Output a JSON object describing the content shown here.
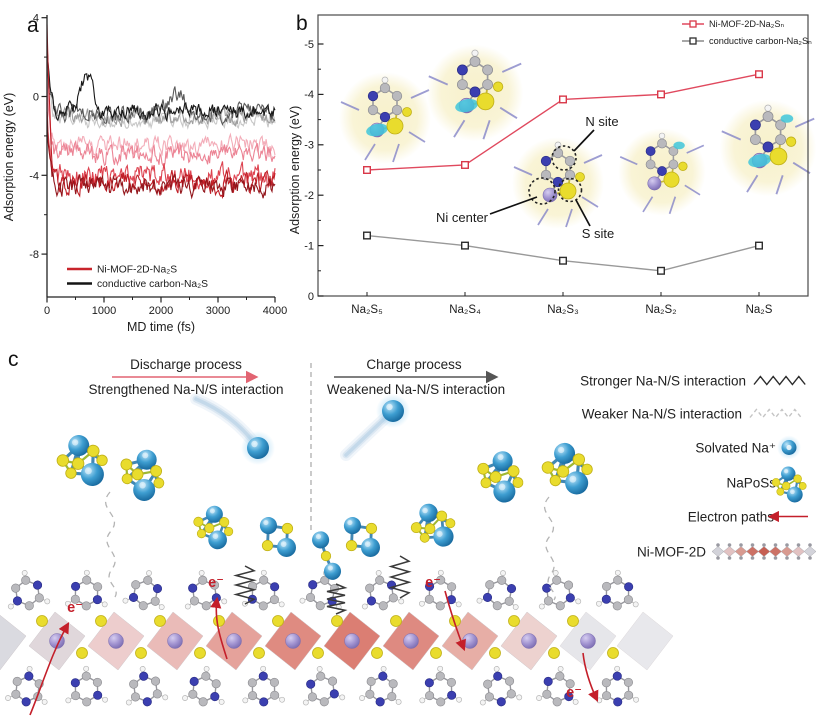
{
  "figure": {
    "panels": {
      "a": {
        "label": "a",
        "ylabel": "Adsorption energy (eV)",
        "xlabel": "MD time (fs)",
        "legend": [
          {
            "label": "Ni-MOF-2D-Na₂S",
            "color": "#c8242b"
          },
          {
            "label": "conductive  carbon-Na₂S",
            "color": "#141414"
          }
        ]
      },
      "b": {
        "label": "b",
        "ylabel": "Adsorption energy (eV)",
        "legend": [
          {
            "label": "Ni-MOF-2D-Na₂Sₙ",
            "color": "#e0495e"
          },
          {
            "label": "conductive  carbon-Na₂Sₙ",
            "color": "#8a8a8a"
          }
        ],
        "annotations": {
          "n_site": "N site",
          "ni_center": "Ni center",
          "s_site": "S site"
        }
      },
      "c": {
        "label": "c",
        "discharge_title": "Discharge process",
        "discharge_sub": "Strengthened Na-N/S interaction",
        "charge_title": "Charge process",
        "charge_sub": "Weakened Na-N/S interaction",
        "electron_label": "e⁻",
        "legend": [
          {
            "label": "Stronger Na-N/S interaction",
            "symbol": "solid-zigzag"
          },
          {
            "label": "Weaker Na-N/S interaction",
            "symbol": "dashed-zigzag"
          },
          {
            "label": "Solvated Na⁺",
            "symbol": "glow-sphere"
          },
          {
            "label": "NaPoSs",
            "symbol": "cluster"
          },
          {
            "label": "Electron paths",
            "symbol": "red-arrow"
          },
          {
            "label": "Ni-MOF-2D",
            "symbol": "mof-chain"
          }
        ]
      }
    }
  },
  "chart_data": [
    {
      "panel": "a",
      "type": "line",
      "title": "",
      "xlabel": "MD time (fs)",
      "ylabel": "Adsorption energy (eV)",
      "xlim": [
        0,
        4000
      ],
      "ylim": [
        -10,
        4
      ],
      "yticks": [
        4,
        0,
        -4,
        -8
      ],
      "xticks": [
        0,
        1000,
        2000,
        3000,
        4000
      ],
      "grid": false,
      "legend_position": "bottom-left",
      "note": "AIMD traces: values spike at t=0 then fluctuate around an equilibrium mean",
      "series": [
        {
          "name": "conductive carbon-Na₂S trace 1",
          "color": "#c7c7c7",
          "start": 3.2,
          "equilibrium_mean_eV": -1.25,
          "noise_amp_eV": 0.3
        },
        {
          "name": "conductive carbon-Na₂S trace 2",
          "color": "#9e9e9e",
          "start": 2.6,
          "equilibrium_mean_eV": -1.05,
          "noise_amp_eV": 0.32
        },
        {
          "name": "conductive carbon-Na₂S trace 3",
          "color": "#5b5b5b",
          "start": 1.8,
          "equilibrium_mean_eV": -0.82,
          "noise_amp_eV": 0.38,
          "bump": {
            "t_fs": 2300,
            "height_eV": 0.9,
            "width_fs": 200
          }
        },
        {
          "name": "conductive carbon-Na₂S trace 4",
          "color": "#171717",
          "start": 2.4,
          "equilibrium_mean_eV": -0.75,
          "noise_amp_eV": 0.34,
          "bump": {
            "t_fs": 700,
            "height_eV": 1.9,
            "width_fs": 150
          }
        },
        {
          "name": "Ni-MOF-2D-Na₂S trace 1",
          "color": "#f3adb9",
          "start": 1.2,
          "equilibrium_mean_eV": -2.5,
          "noise_amp_eV": 0.4
        },
        {
          "name": "Ni-MOF-2D-Na₂S trace 2",
          "color": "#ec8495",
          "start": 0.6,
          "equilibrium_mean_eV": -2.95,
          "noise_amp_eV": 0.44
        },
        {
          "name": "Ni-MOF-2D-Na₂S trace 3",
          "color": "#dd4350",
          "start": -0.2,
          "equilibrium_mean_eV": -4.0,
          "noise_amp_eV": 0.5
        },
        {
          "name": "Ni-MOF-2D-Na₂S trace 4",
          "color": "#c01e26",
          "start": 3.8,
          "equilibrium_mean_eV": -4.35,
          "noise_amp_eV": 0.46
        },
        {
          "name": "Ni-MOF-2D-Na₂S trace 5",
          "color": "#93151b",
          "start": -0.8,
          "equilibrium_mean_eV": -4.55,
          "noise_amp_eV": 0.42
        }
      ]
    },
    {
      "panel": "b",
      "type": "line",
      "title": "",
      "ylabel": "Adsorption energy (eV)",
      "categories": [
        "Na₂S₅",
        "Na₂S₄",
        "Na₂S₃",
        "Na₂S₂",
        "Na₂S"
      ],
      "yticks": [
        0,
        -1,
        -2,
        -3,
        -4,
        -5
      ],
      "ylim": [
        0,
        -5
      ],
      "grid": false,
      "legend_position": "top-right",
      "series": [
        {
          "name": "Ni-MOF-2D-Na₂Sₙ",
          "color": "#e0495e",
          "marker": "open-square",
          "values": [
            -2.5,
            -2.6,
            -3.9,
            -4.0,
            -4.4
          ]
        },
        {
          "name": "conductive carbon-Na₂Sₙ",
          "color": "#999999",
          "marker": "open-square",
          "values": [
            -1.2,
            -1.0,
            -0.7,
            -0.5,
            -1.0
          ]
        }
      ]
    }
  ]
}
